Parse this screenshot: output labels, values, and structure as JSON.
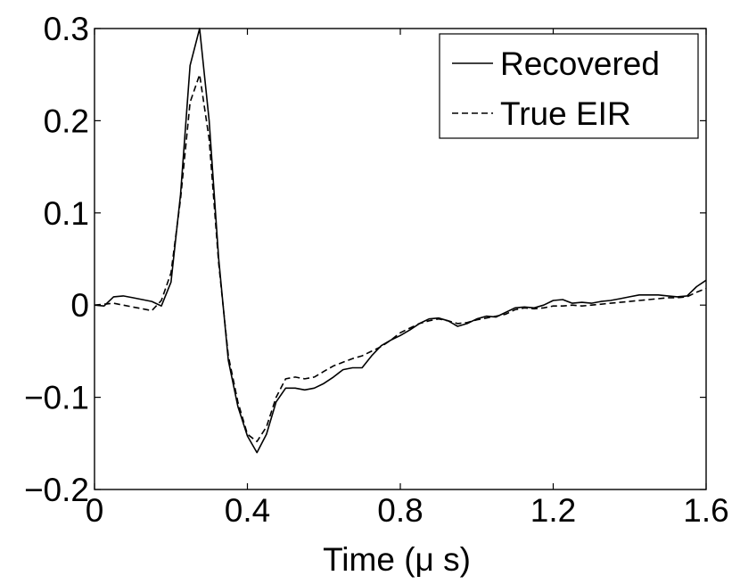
{
  "chart_data": {
    "type": "line",
    "title": "",
    "xlabel": "Time (μ s)",
    "ylabel": "",
    "xlim": [
      0,
      1.6
    ],
    "ylim": [
      -0.2,
      0.3
    ],
    "grid": false,
    "legend_position": "top-right",
    "x_ticks": [
      0,
      0.4,
      0.8,
      1.2,
      1.6
    ],
    "x_tick_labels": [
      "0",
      "0.4",
      "0.8",
      "1.2",
      "1.6"
    ],
    "y_ticks": [
      -0.2,
      -0.1,
      0,
      0.1,
      0.2,
      0.3
    ],
    "y_tick_labels": [
      "−0.2",
      "−0.1",
      "0",
      "0.1",
      "0.2",
      "0.3"
    ],
    "series": [
      {
        "name": "Recovered",
        "style": "solid",
        "color": "#000000",
        "x": [
          0,
          0.025,
          0.05,
          0.075,
          0.1,
          0.125,
          0.15,
          0.175,
          0.2,
          0.225,
          0.25,
          0.275,
          0.3,
          0.325,
          0.35,
          0.375,
          0.4,
          0.425,
          0.45,
          0.475,
          0.5,
          0.525,
          0.55,
          0.575,
          0.6,
          0.625,
          0.65,
          0.675,
          0.7,
          0.725,
          0.75,
          0.775,
          0.8,
          0.825,
          0.85,
          0.875,
          0.9,
          0.925,
          0.95,
          0.975,
          1.0,
          1.025,
          1.05,
          1.075,
          1.1,
          1.125,
          1.15,
          1.175,
          1.2,
          1.225,
          1.25,
          1.275,
          1.3,
          1.325,
          1.35,
          1.375,
          1.4,
          1.425,
          1.45,
          1.475,
          1.5,
          1.525,
          1.55,
          1.575,
          1.6
        ],
        "y": [
          0,
          -0.001,
          0.009,
          0.01,
          0.008,
          0.006,
          0.004,
          -0.001,
          0.025,
          0.12,
          0.26,
          0.3,
          0.2,
          0.05,
          -0.06,
          -0.11,
          -0.142,
          -0.16,
          -0.14,
          -0.105,
          -0.09,
          -0.09,
          -0.092,
          -0.09,
          -0.085,
          -0.078,
          -0.07,
          -0.068,
          -0.068,
          -0.055,
          -0.044,
          -0.038,
          -0.033,
          -0.027,
          -0.02,
          -0.015,
          -0.014,
          -0.017,
          -0.023,
          -0.02,
          -0.015,
          -0.012,
          -0.013,
          -0.008,
          -0.003,
          -0.002,
          -0.003,
          0.0,
          0.005,
          0.006,
          0.002,
          0.003,
          0.002,
          0.004,
          0.005,
          0.007,
          0.009,
          0.011,
          0.011,
          0.011,
          0.01,
          0.009,
          0.01,
          0.02,
          0.027
        ]
      },
      {
        "name": "True EIR",
        "style": "dashed",
        "color": "#000000",
        "x": [
          0,
          0.025,
          0.05,
          0.075,
          0.1,
          0.125,
          0.15,
          0.175,
          0.2,
          0.225,
          0.25,
          0.275,
          0.3,
          0.325,
          0.35,
          0.375,
          0.4,
          0.425,
          0.45,
          0.475,
          0.5,
          0.525,
          0.55,
          0.575,
          0.6,
          0.625,
          0.65,
          0.675,
          0.7,
          0.725,
          0.75,
          0.775,
          0.8,
          0.825,
          0.85,
          0.875,
          0.9,
          0.925,
          0.95,
          0.975,
          1.0,
          1.025,
          1.05,
          1.075,
          1.1,
          1.125,
          1.15,
          1.175,
          1.2,
          1.225,
          1.25,
          1.275,
          1.3,
          1.325,
          1.35,
          1.375,
          1.4,
          1.425,
          1.45,
          1.475,
          1.5,
          1.525,
          1.55,
          1.575,
          1.6
        ],
        "y": [
          0,
          0.001,
          0.002,
          0.0,
          -0.002,
          -0.004,
          -0.006,
          0.005,
          0.035,
          0.115,
          0.22,
          0.25,
          0.18,
          0.045,
          -0.055,
          -0.105,
          -0.14,
          -0.148,
          -0.132,
          -0.1,
          -0.08,
          -0.078,
          -0.08,
          -0.078,
          -0.072,
          -0.066,
          -0.062,
          -0.058,
          -0.055,
          -0.05,
          -0.045,
          -0.038,
          -0.03,
          -0.025,
          -0.02,
          -0.017,
          -0.015,
          -0.017,
          -0.02,
          -0.019,
          -0.016,
          -0.014,
          -0.012,
          -0.01,
          -0.005,
          -0.003,
          -0.004,
          -0.003,
          -0.001,
          -0.001,
          0.0,
          -0.001,
          0.0,
          0.001,
          0.002,
          0.003,
          0.004,
          0.005,
          0.006,
          0.007,
          0.008,
          0.008,
          0.009,
          0.014,
          0.018
        ]
      }
    ]
  }
}
